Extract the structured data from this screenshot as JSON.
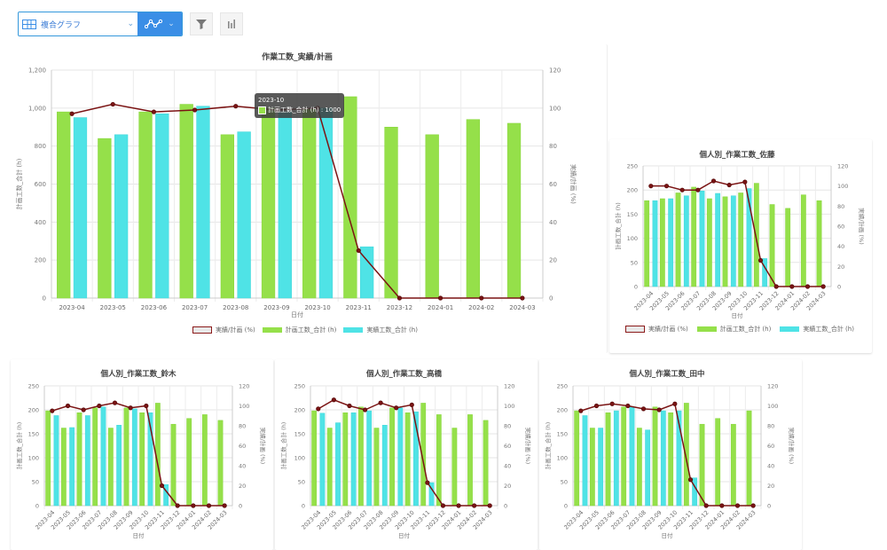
{
  "toolbar": {
    "chart_type_label": "複合グラフ",
    "chart_type_icon": "table-icon",
    "line_type_icon": "line-chart-icon",
    "filter_icon": "filter-icon",
    "bar_icon": "bar-chart-icon"
  },
  "colors": {
    "plan": "#95e04a",
    "actual": "#4fe3e6",
    "ratio": "#7b1414"
  },
  "tooltip": {
    "title": "2023-10",
    "text": "計画工数_合計 (h) : 1000"
  },
  "chart_data": [
    {
      "id": "main",
      "type": "bar",
      "title": "作業工数_実績/計画",
      "xlabel": "日付",
      "ylabel": "計画工数_合計 (h)",
      "y2label": "実績/計画 (%)",
      "ylim": [
        0,
        1200
      ],
      "y2lim": [
        0,
        120
      ],
      "yticks": [
        "0",
        "200",
        "400",
        "600",
        "800",
        "1,000",
        "1,200"
      ],
      "y2ticks": [
        "0",
        "20",
        "40",
        "60",
        "80",
        "100",
        "120"
      ],
      "grid": true,
      "legend_position": "bottom",
      "categories": [
        "2023-04",
        "2023-05",
        "2023-06",
        "2023-07",
        "2023-08",
        "2023-09",
        "2023-10",
        "2023-11",
        "2023-12",
        "2024-01",
        "2024-02",
        "2024-03"
      ],
      "series": [
        {
          "name": "実績/計画 (%)",
          "type": "line",
          "axis": "right",
          "values": [
            97,
            102,
            98,
            99,
            101,
            99,
            100,
            25,
            0,
            0,
            0,
            0
          ]
        },
        {
          "name": "計画工数_合計 (h)",
          "type": "bar",
          "axis": "left",
          "values": [
            980,
            840,
            980,
            1020,
            860,
            1000,
            1000,
            1060,
            900,
            860,
            940,
            920
          ]
        },
        {
          "name": "実績工数_合計 (h)",
          "type": "bar",
          "axis": "left",
          "values": [
            950,
            860,
            970,
            1010,
            875,
            980,
            1000,
            270,
            0,
            0,
            0,
            0
          ]
        }
      ]
    },
    {
      "id": "sato",
      "type": "bar",
      "title": "個人別_作業工数_佐藤",
      "xlabel": "日付",
      "ylabel": "計画工数_合計 (h)",
      "y2label": "実績/計画 (%)",
      "ylim": [
        0,
        250
      ],
      "y2lim": [
        0,
        120
      ],
      "yticks": [
        "0",
        "50",
        "100",
        "150",
        "200",
        "250"
      ],
      "y2ticks": [
        "0",
        "20",
        "40",
        "60",
        "80",
        "100",
        "120"
      ],
      "grid": true,
      "legend_position": "bottom",
      "categories": [
        "2023-04",
        "2023-05",
        "2023-06",
        "2023-07",
        "2023-08",
        "2023-09",
        "2023-10",
        "2023-11",
        "2023-12",
        "2024-01",
        "2024-02",
        "2024-03"
      ],
      "series": [
        {
          "name": "実績/計画 (%)",
          "type": "line",
          "axis": "right",
          "values": [
            100,
            100,
            96,
            96,
            105,
            101,
            104,
            26,
            0,
            0,
            0,
            0
          ]
        },
        {
          "name": "計画工数_合計 (h)",
          "type": "bar",
          "axis": "left",
          "values": [
            178,
            182,
            194,
            206,
            182,
            186,
            194,
            214,
            170,
            162,
            190,
            178
          ]
        },
        {
          "name": "実績工数_合計 (h)",
          "type": "bar",
          "axis": "left",
          "values": [
            178,
            182,
            188,
            198,
            193,
            188,
            203,
            58,
            0,
            0,
            0,
            0
          ]
        }
      ]
    },
    {
      "id": "suzuki",
      "type": "bar",
      "title": "個人別_作業工数_鈴木",
      "xlabel": "日付",
      "ylabel": "計画工数_合計 (h)",
      "y2label": "実績/計画 (%)",
      "ylim": [
        0,
        250
      ],
      "y2lim": [
        0,
        120
      ],
      "yticks": [
        "0",
        "50",
        "100",
        "150",
        "200",
        "250"
      ],
      "y2ticks": [
        "0",
        "20",
        "40",
        "60",
        "80",
        "100",
        "120"
      ],
      "grid": true,
      "categories": [
        "2023-04",
        "2023-05",
        "2023-06",
        "2023-07",
        "2023-08",
        "2023-09",
        "2023-10",
        "2023-11",
        "2023-12",
        "2024-01",
        "2024-02",
        "2024-03"
      ],
      "series": [
        {
          "name": "実績/計画 (%)",
          "type": "line",
          "axis": "right",
          "values": [
            95,
            100,
            96,
            100,
            103,
            98,
            100,
            20,
            0,
            0,
            0,
            0
          ]
        },
        {
          "name": "計画工数_合計 (h)",
          "type": "bar",
          "axis": "left",
          "values": [
            198,
            162,
            194,
            204,
            162,
            204,
            194,
            214,
            170,
            182,
            190,
            178
          ]
        },
        {
          "name": "実績工数_合計 (h)",
          "type": "bar",
          "axis": "left",
          "values": [
            188,
            163,
            188,
            206,
            168,
            202,
            194,
            44,
            0,
            0,
            0,
            0
          ]
        }
      ]
    },
    {
      "id": "takahashi",
      "type": "bar",
      "title": "個人別_作業工数_高橋",
      "xlabel": "日付",
      "ylabel": "計画工数_合計 (h)",
      "y2label": "実績/計画 (%)",
      "ylim": [
        0,
        250
      ],
      "y2lim": [
        0,
        120
      ],
      "yticks": [
        "0",
        "50",
        "100",
        "150",
        "200",
        "250"
      ],
      "y2ticks": [
        "0",
        "20",
        "40",
        "60",
        "80",
        "100",
        "120"
      ],
      "grid": true,
      "categories": [
        "2023-04",
        "2023-05",
        "2023-06",
        "2023-07",
        "2023-08",
        "2023-09",
        "2023-10",
        "2023-11",
        "2023-12",
        "2024-01",
        "2024-02",
        "2024-03"
      ],
      "series": [
        {
          "name": "実績/計画 (%)",
          "type": "line",
          "axis": "right",
          "values": [
            97,
            106,
            100,
            96,
            103,
            98,
            101,
            23,
            0,
            0,
            0,
            0
          ]
        },
        {
          "name": "計画工数_合計 (h)",
          "type": "bar",
          "axis": "left",
          "values": [
            198,
            162,
            194,
            206,
            162,
            204,
            194,
            214,
            190,
            162,
            190,
            178
          ]
        },
        {
          "name": "実績工数_合計 (h)",
          "type": "bar",
          "axis": "left",
          "values": [
            193,
            173,
            194,
            198,
            168,
            204,
            196,
            48,
            0,
            0,
            0,
            0
          ]
        }
      ]
    },
    {
      "id": "tanaka",
      "type": "bar",
      "title": "個人別_作業工数_田中",
      "xlabel": "日付",
      "ylabel": "計画工数_合計 (h)",
      "y2label": "実績/計画 (%)",
      "ylim": [
        0,
        250
      ],
      "y2lim": [
        0,
        120
      ],
      "yticks": [
        "0",
        "50",
        "100",
        "150",
        "200",
        "250"
      ],
      "y2ticks": [
        "0",
        "20",
        "40",
        "60",
        "80",
        "100",
        "120"
      ],
      "grid": true,
      "categories": [
        "2023-04",
        "2023-05",
        "2023-06",
        "2023-07",
        "2023-08",
        "2023-09",
        "2023-10",
        "2023-11",
        "2023-12",
        "2024-01",
        "2024-02",
        "2024-03"
      ],
      "series": [
        {
          "name": "実績/計画 (%)",
          "type": "line",
          "axis": "right",
          "values": [
            95,
            100,
            102,
            100,
            97,
            96,
            102,
            26,
            0,
            0,
            0,
            0
          ]
        },
        {
          "name": "計画工数_合計 (h)",
          "type": "bar",
          "axis": "left",
          "values": [
            198,
            162,
            194,
            206,
            162,
            206,
            194,
            214,
            170,
            182,
            170,
            198
          ]
        },
        {
          "name": "実績工数_合計 (h)",
          "type": "bar",
          "axis": "left",
          "values": [
            188,
            162,
            198,
            206,
            158,
            198,
            198,
            58,
            0,
            0,
            0,
            0
          ]
        }
      ]
    }
  ]
}
